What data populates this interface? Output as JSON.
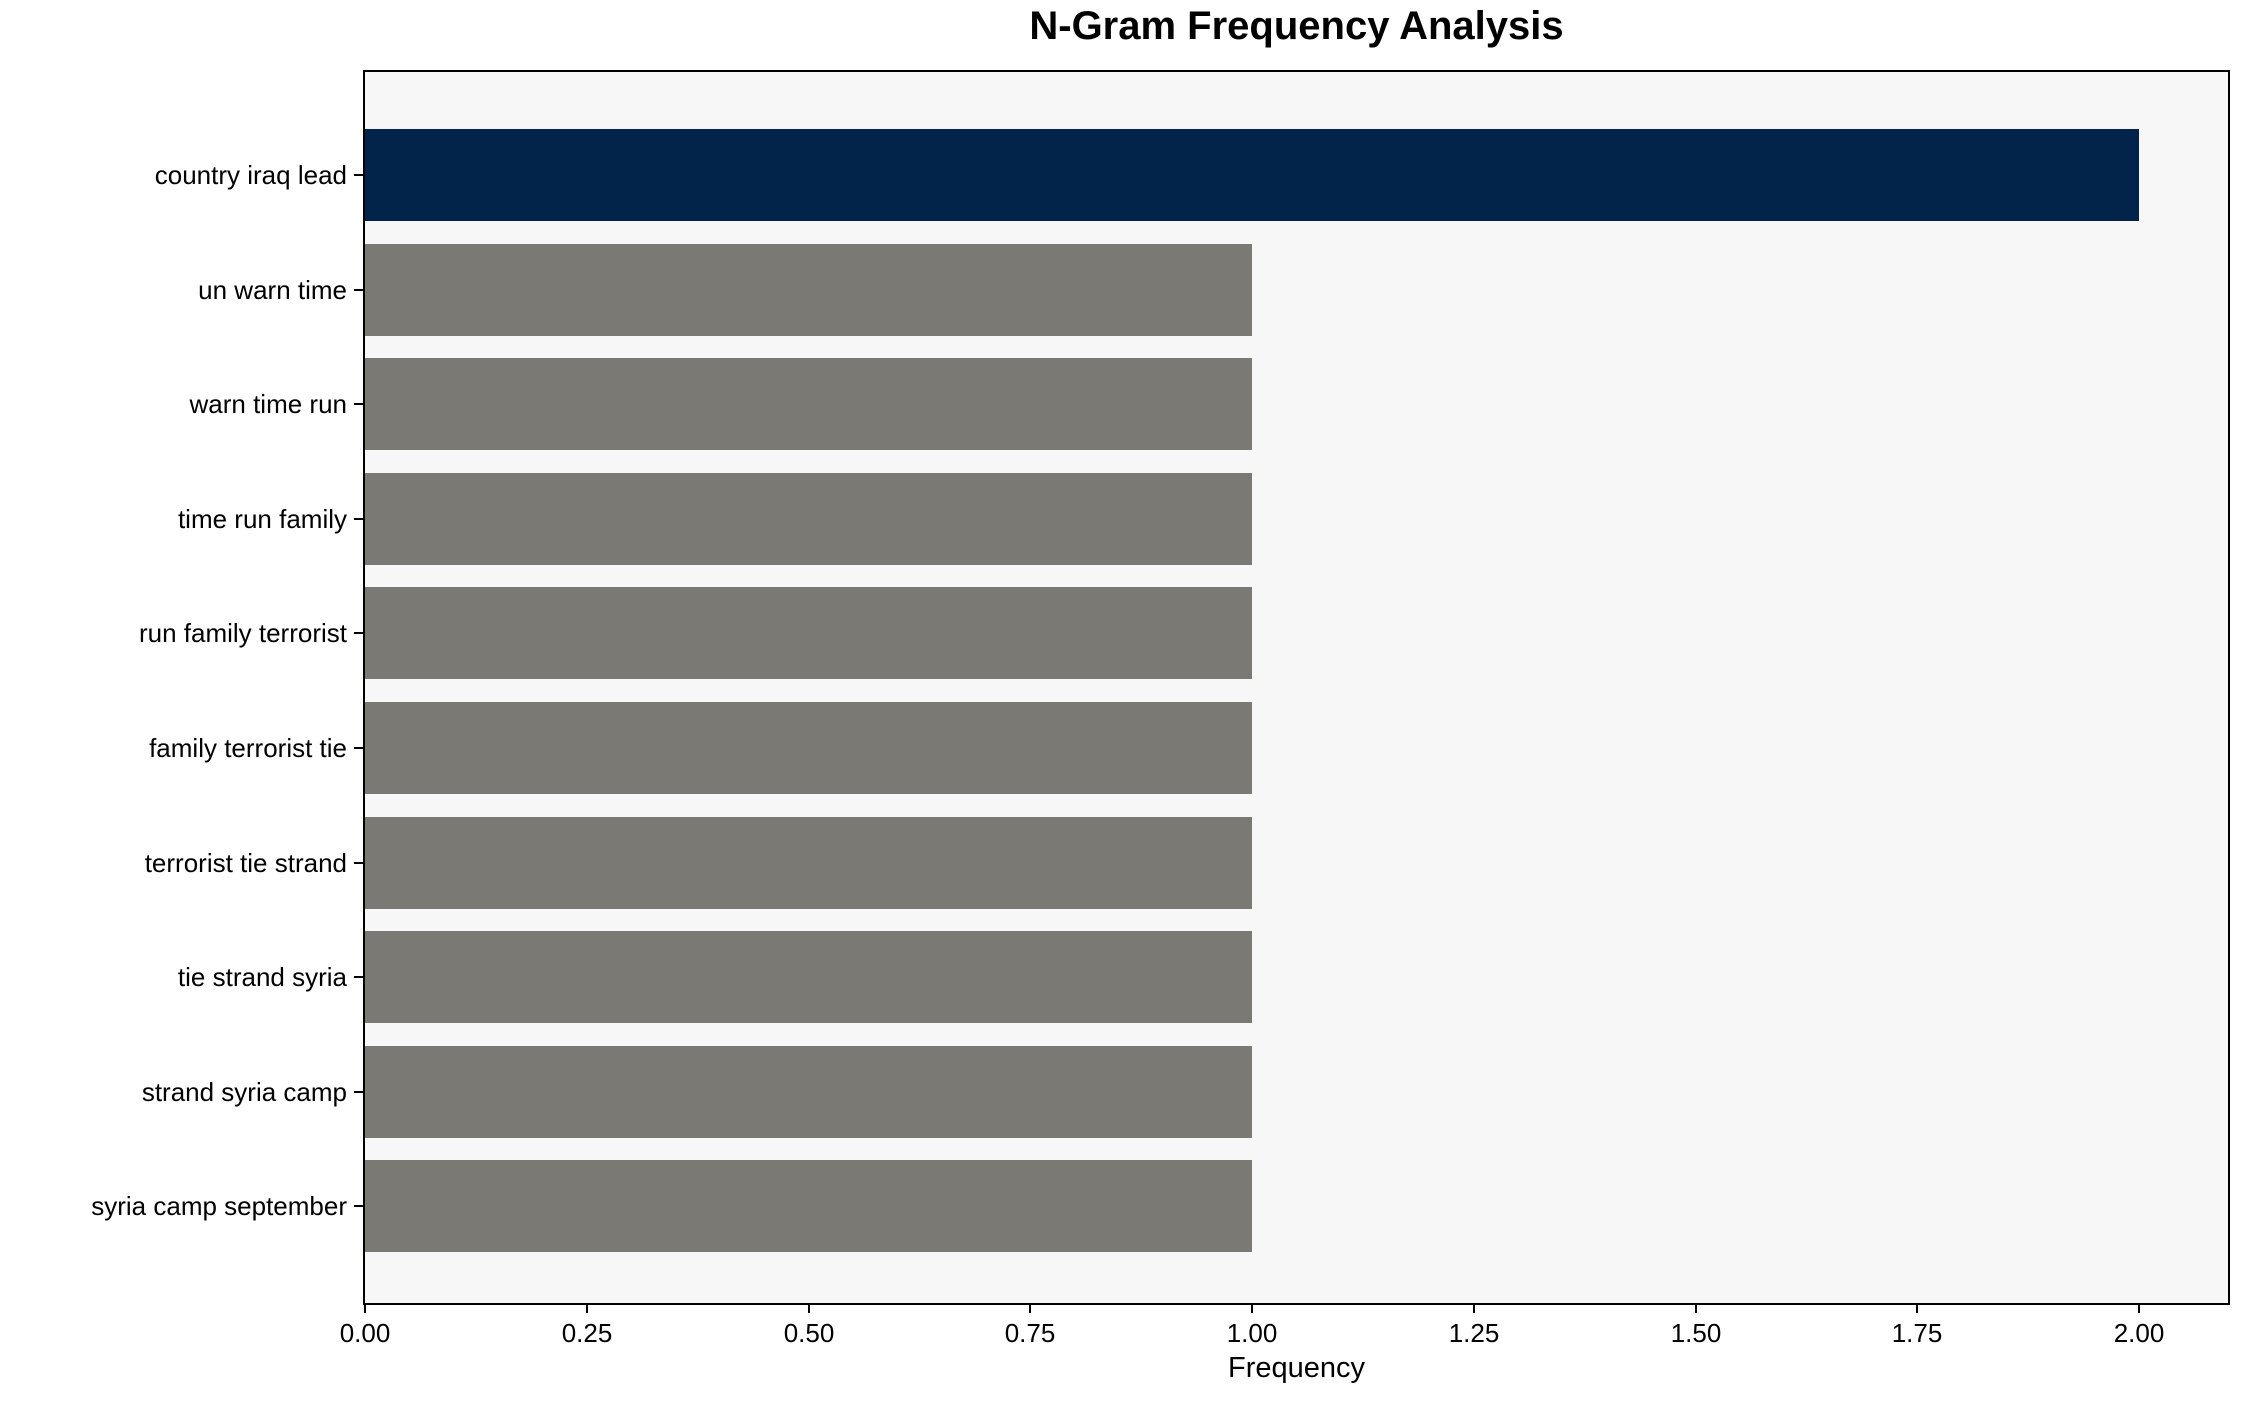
{
  "chart_data": {
    "type": "bar",
    "orientation": "horizontal",
    "title": "N-Gram Frequency Analysis",
    "xlabel": "Frequency",
    "ylabel": "",
    "categories": [
      "country iraq lead",
      "un warn time",
      "warn time run",
      "time run family",
      "run family terrorist",
      "family terrorist tie",
      "terrorist tie strand",
      "tie strand syria",
      "strand syria camp",
      "syria camp september"
    ],
    "values": [
      2,
      1,
      1,
      1,
      1,
      1,
      1,
      1,
      1,
      1
    ],
    "highlight_index": 0,
    "xlim": [
      0,
      2.1
    ],
    "x_ticks": [
      0,
      0.25,
      0.5,
      0.75,
      1.0,
      1.25,
      1.5,
      1.75,
      2.0
    ],
    "x_tick_labels": [
      "0.00",
      "0.25",
      "0.50",
      "0.75",
      "1.00",
      "1.25",
      "1.50",
      "1.75",
      "2.00"
    ],
    "grid": false,
    "legend": null,
    "colors": {
      "highlight_bar": "#02234a",
      "default_bar": "#7a7974",
      "plot_background": "#f7f7f7",
      "figure_background": "#ffffff",
      "spine": "#000000",
      "text": "#000000"
    }
  }
}
